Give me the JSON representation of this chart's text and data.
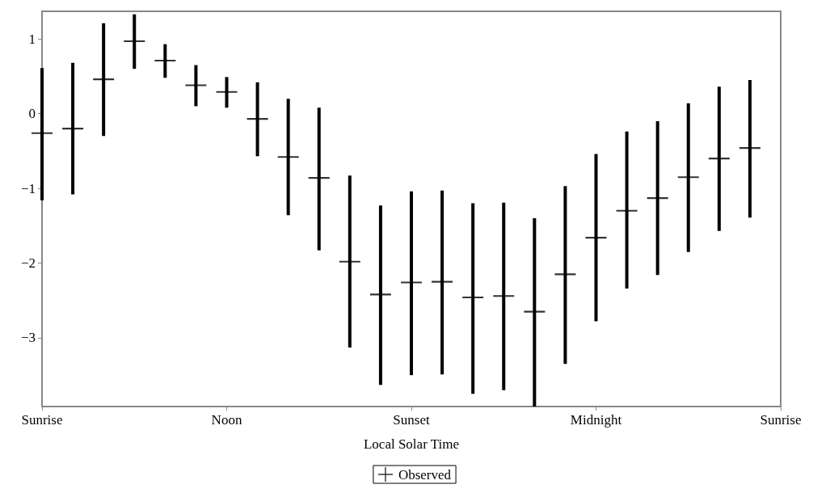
{
  "chart_data": {
    "type": "scatter",
    "xlabel": "Local Solar Time",
    "categories": [
      "Sunrise",
      null,
      null,
      null,
      null,
      null,
      "Noon",
      null,
      null,
      null,
      null,
      null,
      "Sunset",
      null,
      null,
      null,
      null,
      null,
      "Midnight",
      null,
      null,
      null,
      null,
      null,
      "Sunrise"
    ],
    "series": [
      {
        "name": "Observed",
        "color": "#000000",
        "values": [
          -0.26,
          -0.2,
          0.46,
          0.97,
          0.71,
          0.38,
          0.29,
          -0.07,
          -0.58,
          -0.86,
          -1.98,
          -2.42,
          -2.26,
          -2.25,
          -2.46,
          -2.44,
          -2.65,
          -2.15,
          -1.66,
          -1.3,
          -1.13,
          -0.85,
          -0.6,
          -0.46,
          null
        ],
        "errors": [
          [
            -1.16,
            0.61
          ],
          [
            -1.08,
            0.68
          ],
          [
            -0.3,
            1.21
          ],
          [
            0.6,
            1.33
          ],
          [
            0.48,
            0.93
          ],
          [
            0.1,
            0.65
          ],
          [
            0.08,
            0.49
          ],
          [
            -0.57,
            0.42
          ],
          [
            -1.36,
            0.2
          ],
          [
            -1.83,
            0.08
          ],
          [
            -3.13,
            -0.83
          ],
          [
            -3.63,
            -1.23
          ],
          [
            -3.5,
            -1.04
          ],
          [
            -3.49,
            -1.03
          ],
          [
            -3.75,
            -1.2
          ],
          [
            -3.7,
            -1.19
          ],
          [
            -3.92,
            -1.4
          ],
          [
            -3.35,
            -0.97
          ],
          [
            -2.78,
            -0.54
          ],
          [
            -2.34,
            -0.24
          ],
          [
            -2.16,
            -0.1
          ],
          [
            -1.85,
            0.14
          ],
          [
            -1.57,
            0.36
          ],
          [
            -1.39,
            0.45
          ],
          null
        ]
      }
    ],
    "ylim": [
      -3.92,
      1.37
    ],
    "yticks": [
      {
        "value": -3,
        "label": "−3"
      },
      {
        "value": -2,
        "label": "−2"
      },
      {
        "value": -1,
        "label": "−1"
      },
      0,
      1
    ],
    "grid": false,
    "legend": "bottom",
    "marker": "cross"
  }
}
